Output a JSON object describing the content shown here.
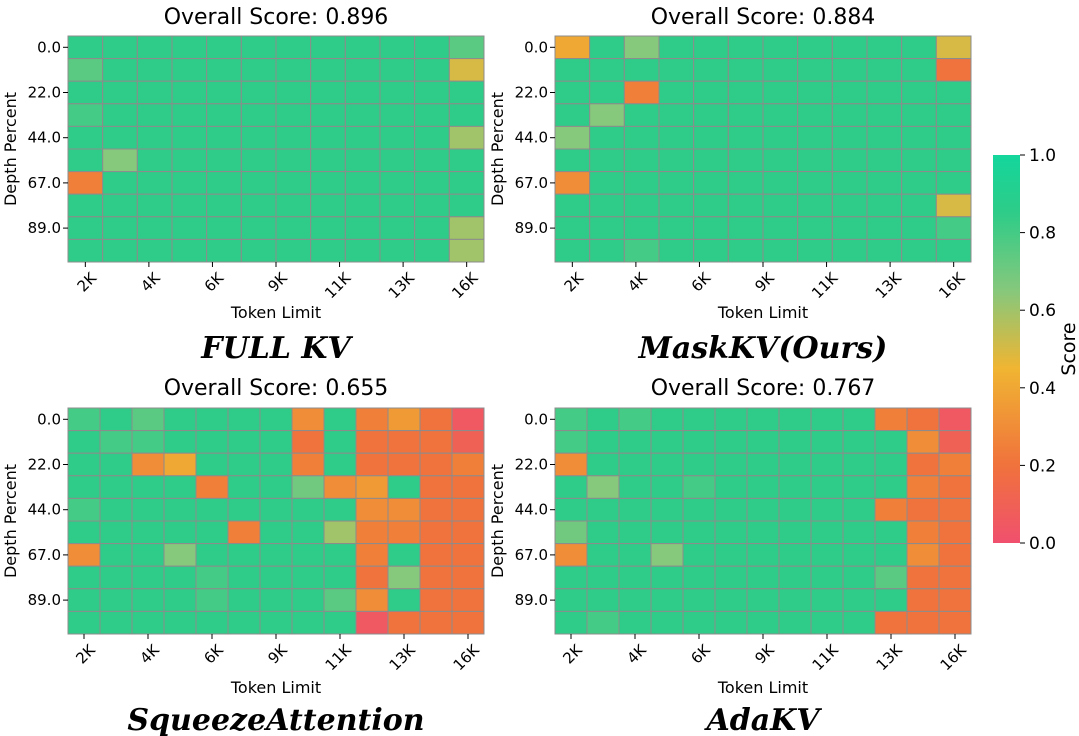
{
  "chart_data": [
    {
      "type": "heatmap",
      "title": "Overall Score: 0.896",
      "caption": "FULL KV",
      "xlabel": "Token Limit",
      "ylabel": "Depth Percent",
      "x_ticks": [
        "2K",
        "4K",
        "6K",
        "9K",
        "11K",
        "13K",
        "16K"
      ],
      "y_ticks": [
        "0.0",
        "22.0",
        "44.0",
        "67.0",
        "89.0"
      ],
      "values": [
        [
          0.85,
          0.85,
          0.85,
          0.85,
          0.85,
          0.85,
          0.85,
          0.85,
          0.85,
          0.85,
          0.85,
          0.75
        ],
        [
          0.75,
          0.85,
          0.85,
          0.85,
          0.85,
          0.85,
          0.85,
          0.85,
          0.85,
          0.85,
          0.85,
          0.5
        ],
        [
          0.85,
          0.85,
          0.85,
          0.85,
          0.85,
          0.85,
          0.85,
          0.85,
          0.85,
          0.85,
          0.85,
          0.85
        ],
        [
          0.8,
          0.85,
          0.85,
          0.85,
          0.85,
          0.85,
          0.85,
          0.85,
          0.85,
          0.85,
          0.85,
          0.85
        ],
        [
          0.85,
          0.85,
          0.85,
          0.85,
          0.85,
          0.85,
          0.85,
          0.85,
          0.85,
          0.85,
          0.85,
          0.6
        ],
        [
          0.85,
          0.65,
          0.85,
          0.85,
          0.85,
          0.85,
          0.85,
          0.85,
          0.85,
          0.85,
          0.85,
          0.85
        ],
        [
          0.25,
          0.85,
          0.85,
          0.85,
          0.85,
          0.85,
          0.85,
          0.85,
          0.85,
          0.85,
          0.85,
          0.85
        ],
        [
          0.85,
          0.85,
          0.85,
          0.85,
          0.85,
          0.85,
          0.85,
          0.85,
          0.85,
          0.85,
          0.85,
          0.85
        ],
        [
          0.85,
          0.85,
          0.85,
          0.85,
          0.85,
          0.85,
          0.85,
          0.85,
          0.85,
          0.85,
          0.85,
          0.6
        ],
        [
          0.85,
          0.85,
          0.85,
          0.85,
          0.85,
          0.85,
          0.85,
          0.85,
          0.85,
          0.85,
          0.85,
          0.6
        ]
      ]
    },
    {
      "type": "heatmap",
      "title": "Overall Score: 0.884",
      "caption": "MaskKV(Ours)",
      "xlabel": "Token Limit",
      "ylabel": "Depth Percent",
      "x_ticks": [
        "2K",
        "4K",
        "6K",
        "9K",
        "11K",
        "13K",
        "16K"
      ],
      "y_ticks": [
        "0.0",
        "22.0",
        "44.0",
        "67.0",
        "89.0"
      ],
      "values": [
        [
          0.4,
          0.85,
          0.65,
          0.85,
          0.85,
          0.85,
          0.85,
          0.85,
          0.85,
          0.85,
          0.85,
          0.5
        ],
        [
          0.85,
          0.85,
          0.85,
          0.85,
          0.85,
          0.85,
          0.85,
          0.85,
          0.85,
          0.85,
          0.85,
          0.2
        ],
        [
          0.85,
          0.85,
          0.25,
          0.85,
          0.85,
          0.85,
          0.85,
          0.85,
          0.85,
          0.85,
          0.85,
          0.85
        ],
        [
          0.85,
          0.65,
          0.85,
          0.85,
          0.85,
          0.85,
          0.85,
          0.85,
          0.85,
          0.85,
          0.85,
          0.85
        ],
        [
          0.65,
          0.85,
          0.85,
          0.85,
          0.85,
          0.85,
          0.85,
          0.85,
          0.85,
          0.85,
          0.85,
          0.85
        ],
        [
          0.85,
          0.85,
          0.85,
          0.85,
          0.85,
          0.85,
          0.85,
          0.85,
          0.85,
          0.85,
          0.85,
          0.85
        ],
        [
          0.3,
          0.85,
          0.85,
          0.85,
          0.85,
          0.85,
          0.85,
          0.85,
          0.85,
          0.85,
          0.85,
          0.85
        ],
        [
          0.85,
          0.85,
          0.85,
          0.85,
          0.85,
          0.85,
          0.85,
          0.85,
          0.85,
          0.85,
          0.85,
          0.5
        ],
        [
          0.85,
          0.85,
          0.85,
          0.85,
          0.85,
          0.85,
          0.85,
          0.85,
          0.85,
          0.85,
          0.85,
          0.8
        ],
        [
          0.85,
          0.85,
          0.8,
          0.85,
          0.85,
          0.85,
          0.85,
          0.85,
          0.85,
          0.85,
          0.85,
          0.85
        ]
      ]
    },
    {
      "type": "heatmap",
      "title": "Overall Score: 0.655",
      "caption": "SqueezeAttention",
      "xlabel": "Token Limit",
      "ylabel": "Depth Percent",
      "x_ticks": [
        "2K",
        "4K",
        "6K",
        "9K",
        "11K",
        "13K",
        "16K"
      ],
      "y_ticks": [
        "0.0",
        "22.0",
        "44.0",
        "67.0",
        "89.0"
      ],
      "values": [
        [
          0.8,
          0.85,
          0.75,
          0.85,
          0.85,
          0.85,
          0.85,
          0.3,
          0.85,
          0.25,
          0.35,
          0.2,
          0.05
        ],
        [
          0.85,
          0.8,
          0.8,
          0.85,
          0.85,
          0.85,
          0.85,
          0.2,
          0.85,
          0.2,
          0.2,
          0.2,
          0.1
        ],
        [
          0.85,
          0.85,
          0.3,
          0.4,
          0.85,
          0.85,
          0.85,
          0.25,
          0.85,
          0.2,
          0.2,
          0.2,
          0.25
        ],
        [
          0.85,
          0.85,
          0.85,
          0.85,
          0.25,
          0.85,
          0.85,
          0.7,
          0.3,
          0.35,
          0.85,
          0.2,
          0.2
        ],
        [
          0.8,
          0.85,
          0.85,
          0.85,
          0.85,
          0.85,
          0.85,
          0.85,
          0.85,
          0.3,
          0.3,
          0.2,
          0.2
        ],
        [
          0.85,
          0.85,
          0.85,
          0.85,
          0.85,
          0.25,
          0.85,
          0.85,
          0.6,
          0.25,
          0.25,
          0.2,
          0.2
        ],
        [
          0.3,
          0.85,
          0.85,
          0.65,
          0.85,
          0.85,
          0.85,
          0.85,
          0.85,
          0.25,
          0.85,
          0.2,
          0.2
        ],
        [
          0.85,
          0.85,
          0.85,
          0.85,
          0.8,
          0.85,
          0.85,
          0.85,
          0.85,
          0.2,
          0.65,
          0.2,
          0.2
        ],
        [
          0.85,
          0.85,
          0.85,
          0.85,
          0.8,
          0.85,
          0.85,
          0.85,
          0.75,
          0.3,
          0.85,
          0.2,
          0.2
        ],
        [
          0.85,
          0.85,
          0.85,
          0.85,
          0.85,
          0.85,
          0.85,
          0.85,
          0.85,
          0.05,
          0.2,
          0.2,
          0.2
        ]
      ]
    },
    {
      "type": "heatmap",
      "title": "Overall Score: 0.767",
      "caption": "AdaKV",
      "xlabel": "Token Limit",
      "ylabel": "Depth Percent",
      "x_ticks": [
        "2K",
        "4K",
        "6K",
        "9K",
        "11K",
        "13K",
        "16K"
      ],
      "y_ticks": [
        "0.0",
        "22.0",
        "44.0",
        "67.0",
        "89.0"
      ],
      "values": [
        [
          0.8,
          0.85,
          0.8,
          0.85,
          0.85,
          0.85,
          0.85,
          0.85,
          0.85,
          0.85,
          0.25,
          0.2,
          0.05
        ],
        [
          0.8,
          0.85,
          0.85,
          0.85,
          0.85,
          0.85,
          0.85,
          0.85,
          0.85,
          0.85,
          0.85,
          0.3,
          0.1
        ],
        [
          0.3,
          0.85,
          0.85,
          0.85,
          0.85,
          0.85,
          0.85,
          0.85,
          0.85,
          0.85,
          0.85,
          0.2,
          0.25
        ],
        [
          0.85,
          0.65,
          0.85,
          0.85,
          0.8,
          0.85,
          0.85,
          0.85,
          0.85,
          0.85,
          0.85,
          0.25,
          0.2
        ],
        [
          0.85,
          0.85,
          0.85,
          0.85,
          0.85,
          0.85,
          0.85,
          0.85,
          0.85,
          0.85,
          0.25,
          0.2,
          0.2
        ],
        [
          0.7,
          0.85,
          0.85,
          0.85,
          0.85,
          0.85,
          0.85,
          0.85,
          0.85,
          0.85,
          0.85,
          0.25,
          0.2
        ],
        [
          0.3,
          0.85,
          0.85,
          0.65,
          0.85,
          0.85,
          0.85,
          0.85,
          0.85,
          0.85,
          0.85,
          0.3,
          0.2
        ],
        [
          0.85,
          0.85,
          0.85,
          0.85,
          0.85,
          0.85,
          0.85,
          0.85,
          0.85,
          0.85,
          0.75,
          0.2,
          0.2
        ],
        [
          0.85,
          0.85,
          0.85,
          0.85,
          0.85,
          0.85,
          0.85,
          0.85,
          0.85,
          0.85,
          0.85,
          0.2,
          0.2
        ],
        [
          0.85,
          0.8,
          0.85,
          0.85,
          0.85,
          0.85,
          0.85,
          0.85,
          0.85,
          0.85,
          0.2,
          0.2,
          0.2
        ]
      ]
    }
  ],
  "colorbar": {
    "label": "Score",
    "ticks": [
      "1.0",
      "0.8",
      "0.6",
      "0.4",
      "0.2",
      "0.0"
    ],
    "min": 0,
    "max": 1,
    "colors": [
      "#f0506e",
      "#f0723c",
      "#f0b532",
      "#86c87c",
      "#2ecc88",
      "#14d69c"
    ]
  }
}
